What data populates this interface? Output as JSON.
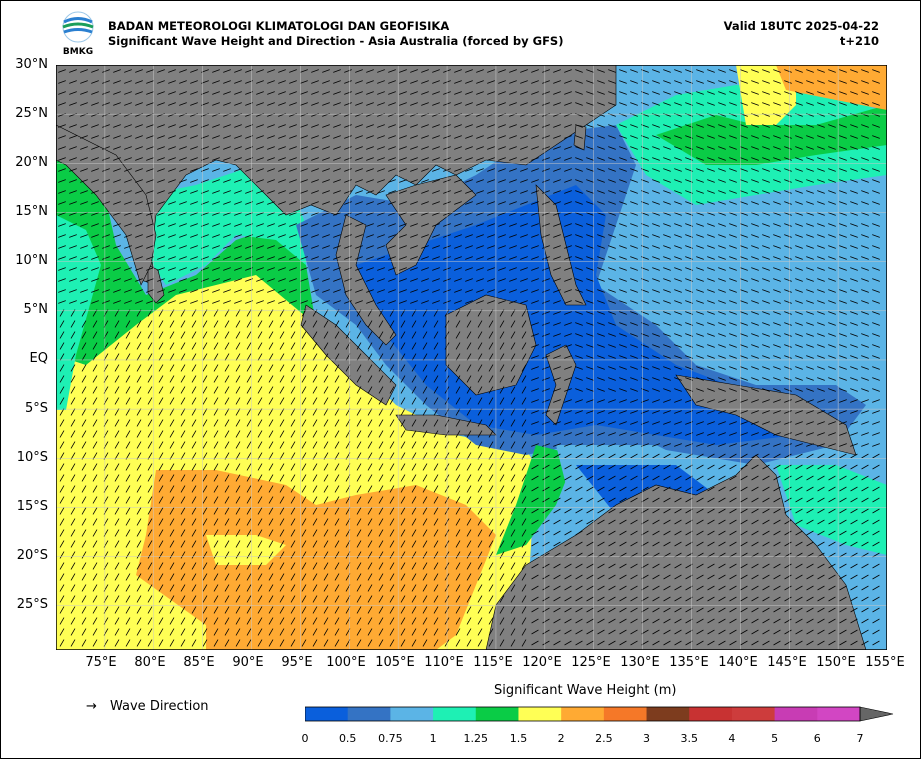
{
  "header": {
    "org": "BADAN METEOROLOGI KLIMATOLOGI DAN GEOFISIKA",
    "product": "Significant Wave Height and Direction - Asia Australia (forced by GFS)",
    "valid": "Valid 18UTC 2025-04-22",
    "step": "t+210",
    "logo_text": "BMKG"
  },
  "axes": {
    "y_labels": [
      "30°N",
      "25°N",
      "20°N",
      "15°N",
      "10°N",
      "5°N",
      "EQ",
      "5°S",
      "10°S",
      "15°S",
      "20°S",
      "25°S"
    ],
    "x_labels": [
      "75°E",
      "80°E",
      "85°E",
      "90°E",
      "95°E",
      "100°E",
      "105°E",
      "110°E",
      "115°E",
      "120°E",
      "125°E",
      "130°E",
      "135°E",
      "140°E",
      "145°E",
      "150°E",
      "155°E"
    ],
    "lat_range": [
      -29.5,
      30
    ],
    "lon_range": [
      70,
      155
    ]
  },
  "legend": {
    "arrow_symbol": "→",
    "direction_label": "Wave Direction"
  },
  "colorbar": {
    "title": "Significant Wave Height (m)",
    "ticks": [
      "0",
      "0.5",
      "0.75",
      "1",
      "1.25",
      "1.5",
      "2",
      "2.5",
      "3",
      "3.5",
      "4",
      "5",
      "6",
      "7"
    ],
    "colors": [
      "#0a5fdc",
      "#3473c4",
      "#5bb4e6",
      "#1ef0b4",
      "#0acc46",
      "#ffff55",
      "#ffaa33",
      "#f57828",
      "#7d3c1e",
      "#c83232",
      "#cd3c3c",
      "#c83cb4",
      "#d246c3"
    ]
  },
  "palette": {
    "land": "#808080",
    "ocean_yellow": "#ffff55",
    "ocean_orange": "#ffaa33",
    "ocean_blue": "#0a5fdc",
    "ocean_midblue": "#3473c4",
    "ocean_lightblue": "#5bb4e6",
    "ocean_cyan": "#1ef0b4",
    "ocean_green": "#0acc46"
  }
}
